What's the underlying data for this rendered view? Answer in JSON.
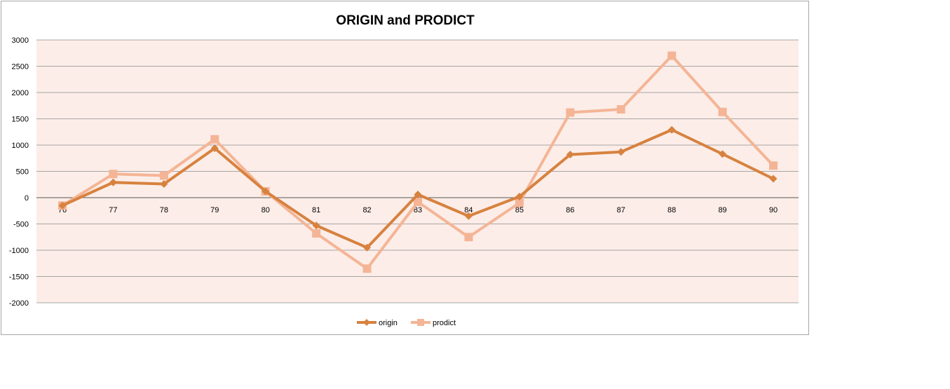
{
  "chart_data": {
    "type": "line",
    "title": "ORIGIN and PRODICT",
    "xlabel": "",
    "ylabel": "",
    "categories": [
      "76",
      "77",
      "78",
      "79",
      "80",
      "81",
      "82",
      "83",
      "84",
      "85",
      "86",
      "87",
      "88",
      "89",
      "90"
    ],
    "ylim": [
      -2000,
      3000
    ],
    "yticks": [
      3000,
      2500,
      2000,
      1500,
      1000,
      500,
      0,
      -500,
      -1000,
      -1500,
      -2000
    ],
    "grid": true,
    "legend": "bottom",
    "plot_background": "#fcede8",
    "series": [
      {
        "name": "origin",
        "color": "#d7823f",
        "marker": "diamond",
        "values": [
          -150,
          290,
          260,
          940,
          120,
          -530,
          -950,
          60,
          -350,
          20,
          820,
          870,
          1290,
          830,
          360
        ]
      },
      {
        "name": "prodict",
        "color": "#f4b596",
        "marker": "square",
        "values": [
          -150,
          450,
          420,
          1110,
          120,
          -680,
          -1350,
          -80,
          -750,
          -100,
          1620,
          1680,
          2700,
          1630,
          610
        ]
      }
    ]
  }
}
